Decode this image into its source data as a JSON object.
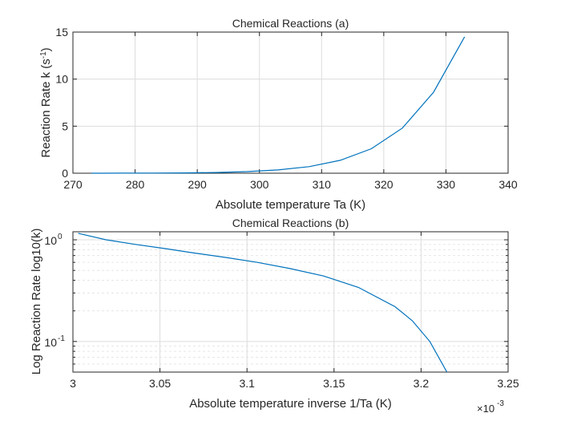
{
  "chart_data": [
    {
      "type": "line",
      "title": "Chemical Reactions (a)",
      "xlabel": "Absolute temperature Ta (K)",
      "ylabel_main": "Reaction Rate k (s",
      "ylabel_sup": "-1",
      "ylabel_end": ")",
      "xlim": [
        270,
        340
      ],
      "ylim": [
        0,
        15
      ],
      "xticks": [
        270,
        280,
        290,
        300,
        310,
        320,
        330,
        340
      ],
      "xtick_labels": [
        "270",
        "280",
        "290",
        "300",
        "310",
        "320",
        "330",
        "340"
      ],
      "yticks": [
        0,
        5,
        10,
        15
      ],
      "ytick_labels": [
        "0",
        "5",
        "10",
        "15"
      ],
      "grid": true,
      "y_scale": "linear",
      "line_color": "#0072BD",
      "x": [
        273,
        278,
        283,
        288,
        293,
        298,
        303,
        308,
        313,
        318,
        323,
        328,
        333
      ],
      "y": [
        0.003,
        0.007,
        0.016,
        0.036,
        0.08,
        0.17,
        0.35,
        0.7,
        1.37,
        2.6,
        4.8,
        8.6,
        14.5
      ]
    },
    {
      "type": "line",
      "title": "Chemical Reactions (b)",
      "xlabel": "Absolute temperature inverse 1/Ta (K)",
      "ylabel": "Log Reaction Rate log10(k)",
      "x_exponent_base": "×10",
      "x_exponent_power": "-3",
      "xlim": [
        3.0,
        3.25
      ],
      "ylim": [
        0.05,
        1.2
      ],
      "xticks": [
        3.0,
        3.05,
        3.1,
        3.15,
        3.2,
        3.25
      ],
      "xtick_labels": [
        "3",
        "3.05",
        "3.1",
        "3.15",
        "3.2",
        "3.25"
      ],
      "ytick_labels": [
        {
          "base": "10",
          "power": "0",
          "value": 1.0
        },
        {
          "base": "10",
          "power": "-1",
          "value": 0.1
        }
      ],
      "grid": true,
      "minor_grid": true,
      "y_scale": "log",
      "line_color": "#0072BD",
      "x": [
        3.003,
        3.019,
        3.036,
        3.053,
        3.07,
        3.088,
        3.106,
        3.125,
        3.144,
        3.164,
        3.185,
        3.195,
        3.205,
        3.216
      ],
      "y": [
        1.16,
        1.0,
        0.9,
        0.82,
        0.74,
        0.67,
        0.6,
        0.52,
        0.44,
        0.34,
        0.22,
        0.16,
        0.1,
        0.046
      ]
    }
  ]
}
